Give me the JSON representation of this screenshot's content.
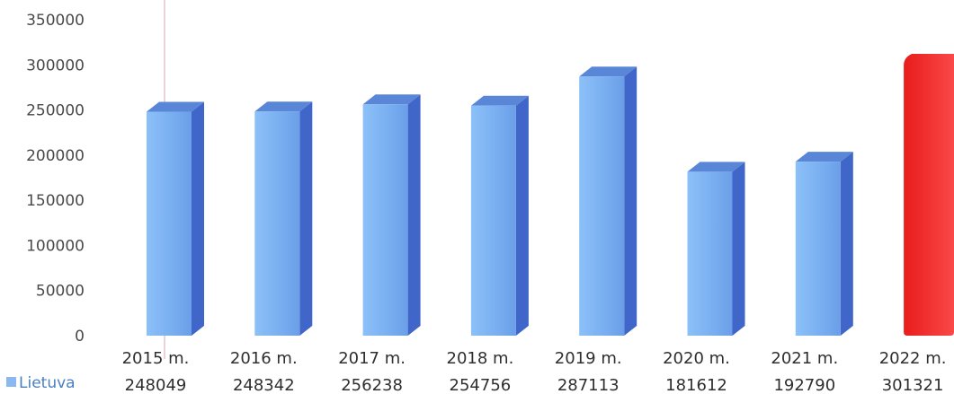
{
  "chart_data": {
    "type": "bar",
    "style": "3d-column",
    "categories": [
      "2015 m.",
      "2016 m.",
      "2017 m.",
      "2018 m.",
      "2019 m.",
      "2020 m.",
      "2021 m.",
      "2022 m."
    ],
    "series": [
      {
        "name": "Lietuva",
        "values": [
          248049,
          248342,
          256238,
          254756,
          287113,
          181612,
          192790,
          301321
        ]
      }
    ],
    "ylim": [
      0,
      350000
    ],
    "yticks": [
      0,
      50000,
      100000,
      150000,
      200000,
      250000,
      300000,
      350000
    ],
    "grid": false,
    "legend_placement": "bottom-left, in data table",
    "data_table": true,
    "colors": {
      "bar_front": "#7fb4f2",
      "bar_side": "#3f66c8",
      "bar_top": "#5a86d8",
      "highlight_front": "#f03030",
      "highlight_side": "#c41818",
      "legend_marker": "#8bb8ee"
    },
    "highlight_category": "2022 m."
  }
}
